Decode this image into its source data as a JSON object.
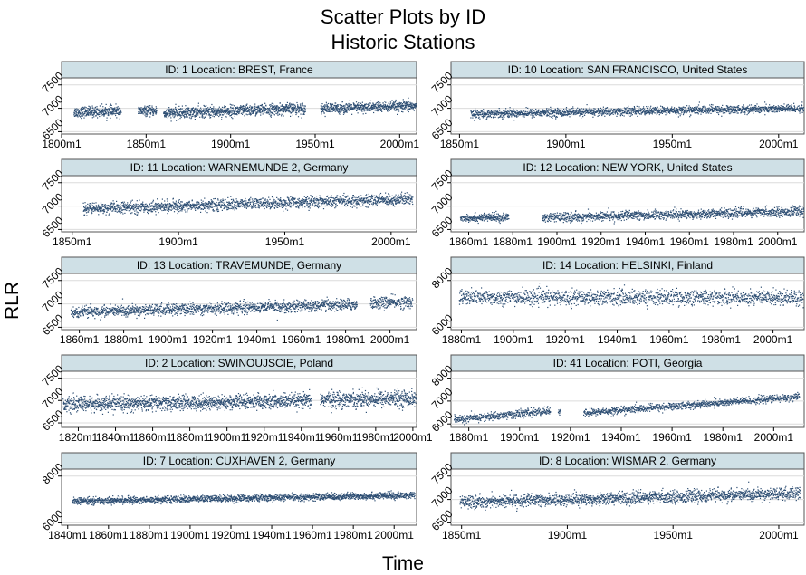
{
  "title": "Scatter Plots by ID",
  "subtitle": "Historic Stations",
  "ylabel": "RLR",
  "xlabel": "Time",
  "colors": {
    "points": "#2d4e73",
    "header_bg": "#cfe0e6",
    "grid": "#dcdcdc",
    "frame": "#555555"
  },
  "chart_data": [
    {
      "type": "scatter",
      "title": "ID: 1  Location: BREST, France",
      "x_ticks": [
        "1800m1",
        "1850m1",
        "1900m1",
        "1950m1",
        "2000m1"
      ],
      "x_tick_years": [
        1800,
        1850,
        1900,
        1950,
        2000
      ],
      "xlim": [
        1800,
        2010
      ],
      "y_ticks": [
        "6500",
        "7000",
        "7500"
      ],
      "y_tick_values": [
        6500,
        7000,
        7500
      ],
      "ylim": [
        6450,
        7650
      ],
      "series": [
        {
          "segments": [
            [
              1807,
              1835,
              6930,
              6950,
              70
            ],
            [
              1845,
              1856,
              6950,
              6955,
              60
            ],
            [
              1860,
              1944,
              6900,
              7010,
              75
            ],
            [
              1953,
              2010,
              7000,
              7060,
              70
            ]
          ]
        }
      ]
    },
    {
      "type": "scatter",
      "title": "ID: 10  Location: SAN FRANCISCO, United States",
      "x_ticks": [
        "1850m1",
        "1900m1",
        "1950m1",
        "2000m1"
      ],
      "x_tick_years": [
        1850,
        1900,
        1950,
        2000
      ],
      "xlim": [
        1846,
        2012
      ],
      "y_ticks": [
        "6500",
        "7000",
        "7500"
      ],
      "y_tick_values": [
        6500,
        7000,
        7500
      ],
      "ylim": [
        6450,
        7650
      ],
      "series": [
        {
          "segments": [
            [
              1855,
              2012,
              6890,
              7010,
              55
            ]
          ]
        }
      ]
    },
    {
      "type": "scatter",
      "title": "ID: 11  Location: WARNEMUNDE 2, Germany",
      "x_ticks": [
        "1850m1",
        "1900m1",
        "1950m1",
        "2000m1"
      ],
      "x_tick_years": [
        1850,
        1900,
        1950,
        2000
      ],
      "xlim": [
        1845,
        2012
      ],
      "y_ticks": [
        "6500",
        "7000",
        "7500"
      ],
      "y_tick_values": [
        6500,
        7000,
        7500
      ],
      "ylim": [
        6450,
        7650
      ],
      "series": [
        {
          "segments": [
            [
              1855,
              2010,
              6950,
              7160,
              75
            ]
          ]
        }
      ]
    },
    {
      "type": "scatter",
      "title": "ID: 12  Location: NEW YORK, United States",
      "x_ticks": [
        "1860m1",
        "1880m1",
        "1900m1",
        "1920m1",
        "1940m1",
        "1960m1",
        "1980m1",
        "2000m1"
      ],
      "x_tick_years": [
        1860,
        1880,
        1900,
        1920,
        1940,
        1960,
        1980,
        2000
      ],
      "xlim": [
        1852,
        2012
      ],
      "y_ticks": [
        "6500",
        "7000",
        "7500"
      ],
      "y_tick_values": [
        6500,
        7000,
        7500
      ],
      "ylim": [
        6450,
        7650
      ],
      "series": [
        {
          "segments": [
            [
              1856,
              1878,
              6760,
              6770,
              55
            ],
            [
              1893,
              2012,
              6760,
              6900,
              60
            ]
          ]
        }
      ]
    },
    {
      "type": "scatter",
      "title": "ID: 13  Location: TRAVEMUNDE, Germany",
      "x_ticks": [
        "1860m1",
        "1880m1",
        "1900m1",
        "1920m1",
        "1940m1",
        "1960m1",
        "1980m1",
        "2000m1"
      ],
      "x_tick_years": [
        1860,
        1880,
        1900,
        1920,
        1940,
        1960,
        1980,
        2000
      ],
      "xlim": [
        1852,
        2012
      ],
      "y_ticks": [
        "6500",
        "7000",
        "7500"
      ],
      "y_tick_values": [
        6500,
        7000,
        7500
      ],
      "ylim": [
        6450,
        7650
      ],
      "series": [
        {
          "segments": [
            [
              1856,
              1985,
              6830,
              7000,
              75
            ],
            [
              1991,
              2010,
              7030,
              7050,
              80
            ]
          ]
        }
      ]
    },
    {
      "type": "scatter",
      "title": "ID: 14  Location: HELSINKI, Finland",
      "x_ticks": [
        "1880m1",
        "1900m1",
        "1920m1",
        "1940m1",
        "1960m1",
        "1980m1",
        "2000m1"
      ],
      "x_tick_years": [
        1880,
        1900,
        1920,
        1940,
        1960,
        1980,
        2000
      ],
      "xlim": [
        1876,
        2012
      ],
      "y_ticks": [
        "6000",
        "8000"
      ],
      "y_tick_values": [
        6000,
        8000
      ],
      "ylim": [
        5900,
        8300
      ],
      "series": [
        {
          "segments": [
            [
              1879,
              2012,
              7300,
              7300,
              200
            ]
          ]
        }
      ]
    },
    {
      "type": "scatter",
      "title": "ID: 2  Location: SWINOUJSCIE, Poland",
      "x_ticks": [
        "1820m1",
        "1840m1",
        "1860m1",
        "1880m1",
        "1900m1",
        "1920m1",
        "1940m1",
        "1960m1",
        "1980m1",
        "2000m1"
      ],
      "x_tick_years": [
        1820,
        1840,
        1860,
        1880,
        1900,
        1920,
        1940,
        1960,
        1980,
        2000
      ],
      "xlim": [
        1811,
        2002
      ],
      "y_ticks": [
        "6500",
        "7000",
        "7500"
      ],
      "y_tick_values": [
        6500,
        7000,
        7500
      ],
      "ylim": [
        6400,
        7650
      ],
      "series": [
        {
          "segments": [
            [
              1811,
              1945,
              6920,
              7000,
              100
            ],
            [
              1950,
              2002,
              7030,
              7060,
              110
            ]
          ]
        }
      ]
    },
    {
      "type": "scatter",
      "title": "ID: 41  Location: POTI, Georgia",
      "x_ticks": [
        "1880m1",
        "1900m1",
        "1920m1",
        "1940m1",
        "1960m1",
        "1980m1",
        "2000m1"
      ],
      "x_tick_years": [
        1880,
        1900,
        1920,
        1940,
        1960,
        1980,
        2000
      ],
      "xlim": [
        1873,
        2012
      ],
      "y_ticks": [
        "6000",
        "7000",
        "8000"
      ],
      "y_tick_values": [
        6000,
        7000,
        8000
      ],
      "ylim": [
        5850,
        8300
      ],
      "series": [
        {
          "segments": [
            [
              1874,
              1912,
              6200,
              6600,
              110
            ],
            [
              1915,
              1916,
              6500,
              6500,
              110
            ],
            [
              1925,
              2010,
              6500,
              7200,
              100
            ]
          ]
        }
      ]
    },
    {
      "type": "scatter",
      "title": "ID: 7  Location: CUXHAVEN 2, Germany",
      "x_ticks": [
        "1840m1",
        "1860m1",
        "1880m1",
        "1900m1",
        "1920m1",
        "1940m1",
        "1960m1",
        "1980m1",
        "2000m1"
      ],
      "x_tick_years": [
        1840,
        1860,
        1880,
        1900,
        1920,
        1940,
        1960,
        1980,
        2000
      ],
      "xlim": [
        1837,
        2011
      ],
      "y_ticks": [
        "6000",
        "8000"
      ],
      "y_tick_values": [
        6000,
        8000
      ],
      "ylim": [
        5900,
        8300
      ],
      "series": [
        {
          "segments": [
            [
              1842,
              2010,
              6950,
              7200,
              90
            ]
          ]
        }
      ]
    },
    {
      "type": "scatter",
      "title": "ID: 8  Location: WISMAR 2, Germany",
      "x_ticks": [
        "1850m1",
        "1900m1",
        "1950m1",
        "2000m1"
      ],
      "x_tick_years": [
        1850,
        1900,
        1950,
        2000
      ],
      "xlim": [
        1845,
        2012
      ],
      "y_ticks": [
        "6500",
        "7000",
        "7500"
      ],
      "y_tick_values": [
        6500,
        7000,
        7500
      ],
      "ylim": [
        6450,
        7650
      ],
      "series": [
        {
          "segments": [
            [
              1849,
              2010,
              6950,
              7140,
              80
            ]
          ]
        }
      ]
    }
  ]
}
